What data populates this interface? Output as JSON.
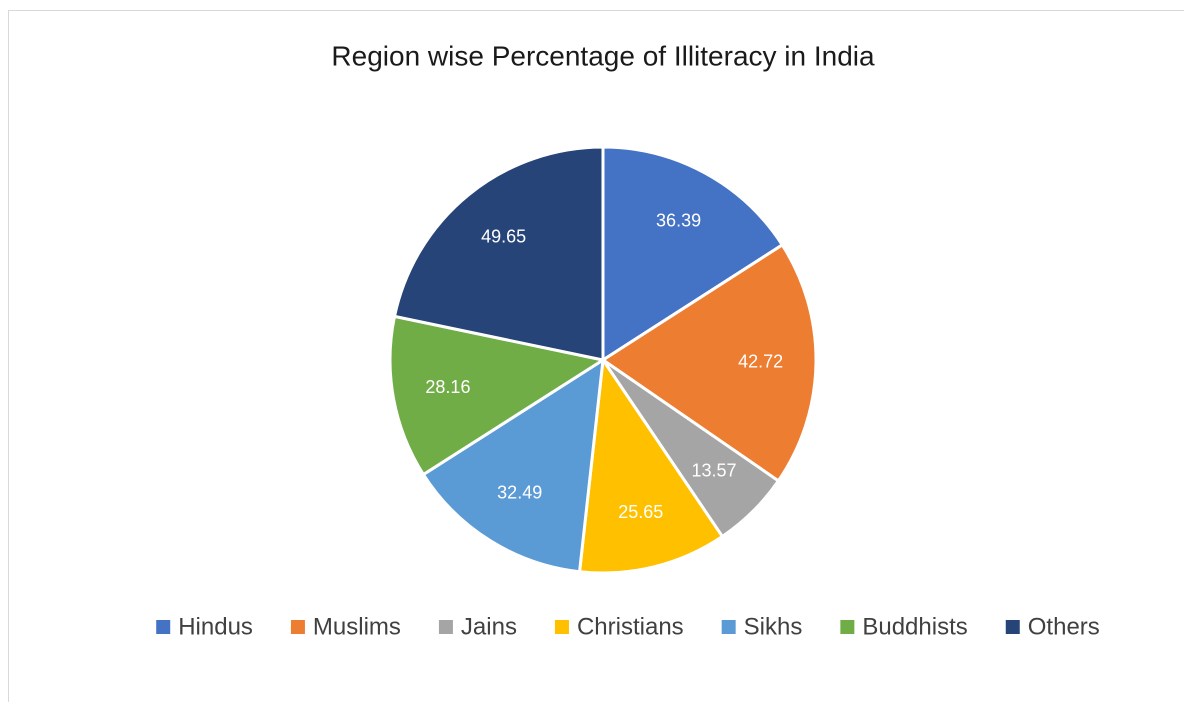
{
  "chart_data": {
    "type": "pie",
    "title": "Region wise Percentage of Illiteracy in India",
    "categories": [
      "Hindus",
      "Muslims",
      "Jains",
      "Christians",
      "Sikhs",
      "Buddhists",
      "Others"
    ],
    "values": [
      36.39,
      42.72,
      13.57,
      25.65,
      32.49,
      28.16,
      49.65
    ],
    "colors": [
      "#4472c4",
      "#ed7d31",
      "#a5a5a5",
      "#ffc000",
      "#5b9bd5",
      "#70ad47",
      "#264478"
    ],
    "legend": "bottom"
  }
}
